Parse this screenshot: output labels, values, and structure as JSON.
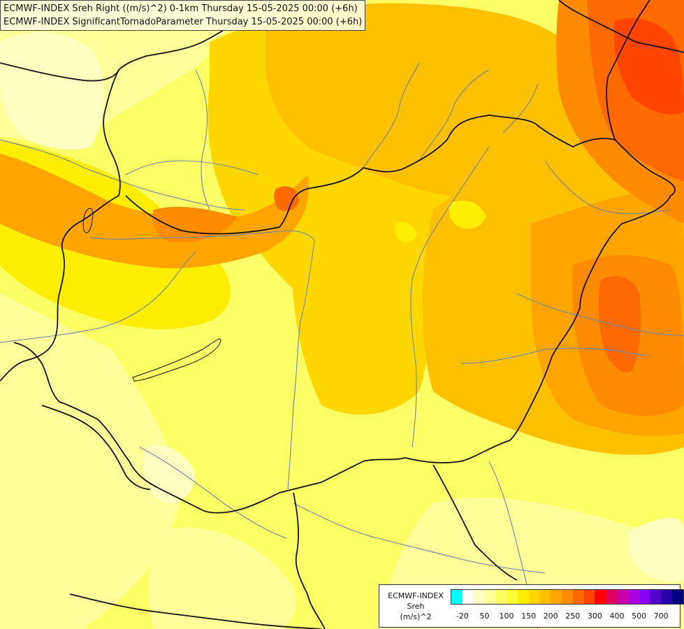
{
  "title": {
    "line1": "ECMWF-INDEX Sreh Right ((m/s)^2) 0-1km Thursday 15-05-2025 00:00 (+6h)",
    "line2": "ECMWF-INDEX SignificantTornadoParameter Thursday 15-05-2025 00:00 (+6h)"
  },
  "legend": {
    "label_line1": "ECMWF-INDEX",
    "label_line2": "Sreh",
    "label_line3": "(m/s)^2",
    "colors": [
      "#00ffff",
      "#ffffff",
      "#ffffc0",
      "#ffff99",
      "#ffff66",
      "#ffff33",
      "#ffee00",
      "#ffd700",
      "#ffc000",
      "#ffa500",
      "#ff8c00",
      "#ff6a00",
      "#ff4500",
      "#ff0000",
      "#e00060",
      "#cc00aa",
      "#aa00dd",
      "#8800ee",
      "#5500cc",
      "#2a00aa",
      "#000080"
    ],
    "ticks": [
      {
        "label": "-20",
        "pos": 1
      },
      {
        "label": "50",
        "pos": 3
      },
      {
        "label": "100",
        "pos": 5
      },
      {
        "label": "150",
        "pos": 7
      },
      {
        "label": "200",
        "pos": 9
      },
      {
        "label": "250",
        "pos": 11
      },
      {
        "label": "300",
        "pos": 13
      },
      {
        "label": "400",
        "pos": 15
      },
      {
        "label": "500",
        "pos": 17
      },
      {
        "label": "700",
        "pos": 19
      }
    ]
  }
}
